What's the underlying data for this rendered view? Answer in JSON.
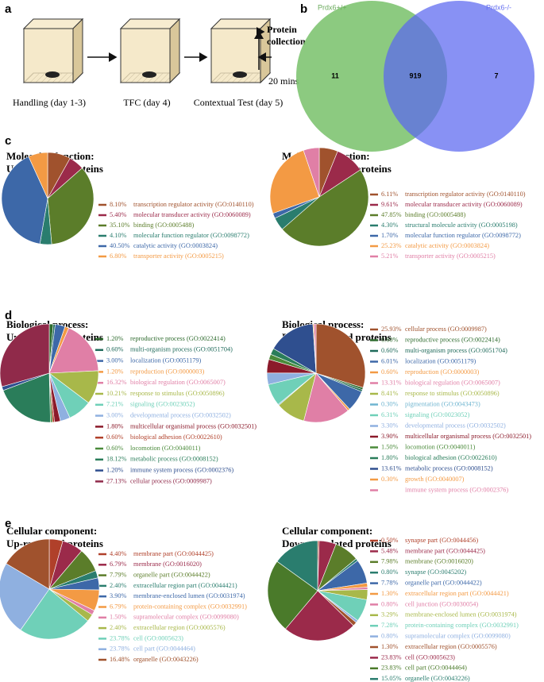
{
  "panel_a": {
    "label": "a",
    "steps": [
      "Handling (day 1-3)",
      "TFC (day 4)",
      "Contextual Test (day 5)"
    ],
    "end_title": [
      "Protein",
      "collection"
    ],
    "end_time": "20 mins"
  },
  "panel_b": {
    "label": "b",
    "sets": [
      "Prdx6+/+",
      "Prdx6-/-"
    ],
    "counts": [
      11,
      919,
      7
    ]
  },
  "panel_labels": [
    "c",
    "d",
    "e"
  ],
  "chart_data": [
    {
      "type": "pie",
      "title": "Molecular function:",
      "subtitle": "Up-regulated proteins",
      "categories": [
        "transcription regulator activity (GO:0140110)",
        "molecular transducer activity (GO:0060089)",
        "binding (GO:0005488)",
        "molecular function regulator (GO:0098772)",
        "catalytic activity (GO:0003824)",
        "transporter activity (GO:0005215)"
      ],
      "values": [
        8.1,
        5.4,
        35.1,
        4.1,
        40.5,
        6.8
      ],
      "value_labels": [
        "8.10%",
        "5.40%",
        "35.10%",
        "4.10%",
        "40.50%",
        "6.80%"
      ],
      "colors": [
        "#a0522d",
        "#9b2a4a",
        "#5b7d2a",
        "#2a7d6e",
        "#3d68a8",
        "#f39a44"
      ]
    },
    {
      "type": "pie",
      "title": "Molecular function:",
      "subtitle": "Down-regulated proteins",
      "categories": [
        "transcription regulator activity (GO:0140110)",
        "molecular transducer activity (GO:0060089)",
        "binding (GO:0005488)",
        "structural molecule activity (GO:0005198)",
        "molecular function regulator (GO:0098772)",
        "catalytic activity (GO:0003824)",
        "transporter activity (GO:0005215)"
      ],
      "values": [
        6.11,
        9.61,
        47.85,
        4.3,
        1.7,
        25.23,
        5.21
      ],
      "value_labels": [
        "6.11%",
        "9.61%",
        "47.85%",
        "4.30%",
        "1.70%",
        "25.23%",
        "5.21%"
      ],
      "colors": [
        "#a0522d",
        "#9b2a4a",
        "#5b7d2a",
        "#2a7d6e",
        "#3d68a8",
        "#f39a44",
        "#e07fa6"
      ]
    },
    {
      "type": "pie",
      "title": "Biological process:",
      "subtitle": "Up-regulated proteins",
      "categories": [
        "reproductive process (GO:0022414)",
        "multi-organism process (GO:0051704)",
        "localization (GO:0051179)",
        "reproduction (GO:0000003)",
        "biological regulation (GO:0065007)",
        "response to stimulus (GO:0050896)",
        "signaling (GO:0023052)",
        "developmental process (GO:0032502)",
        "multicellular organismal process (GO:0032501)",
        "biological adhesion (GO:0022610)",
        "locomotion (GO:0040011)",
        "metabolic process (GO:0008152)",
        "immune system process (GO:0002376)",
        "cellular process (GO:0009987)"
      ],
      "values": [
        1.2,
        0.6,
        3.0,
        1.2,
        16.32,
        10.21,
        7.21,
        3.0,
        1.8,
        0.6,
        0.6,
        18.12,
        1.2,
        27.13
      ],
      "value_labels": [
        "1.20%",
        "0.60%",
        "3.00%",
        "1.20%",
        "16.32%",
        "10.21%",
        "7.21%",
        "3.00%",
        "1.80%",
        "0.60%",
        "0.60%",
        "18.12%",
        "1.20%",
        "27.13%"
      ],
      "colors": [
        "#2e6b2e",
        "#1f6a5a",
        "#3d68a8",
        "#f39a44",
        "#e07fa6",
        "#a8b84a",
        "#6fd0b8",
        "#8fb0e0",
        "#8b1a2a",
        "#b0402a",
        "#4a8a3a",
        "#2a7d5a",
        "#2f4f8f",
        "#902a4a"
      ]
    },
    {
      "type": "pie",
      "title": "Biological process:",
      "subtitle": "Down-regulated proteins",
      "categories": [
        "cellular process (GO:0009987)",
        "reproductive process (GO:0022414)",
        "multi-organism process (GO:0051704)",
        "localization (GO:0051179)",
        "reproduction (GO:0000003)",
        "biological regulation (GO:0065007)",
        "response to stimulus (GO:0050896)",
        "pigmentation (GO:0043473)",
        "signaling (GO:0023052)",
        "developmental process (GO:0032502)",
        "multicellular organismal process (GO:0032501)",
        "locomotion (GO:0040011)",
        "biological adhesion (GO:0022610)",
        "metabolic process (GO:0008152)",
        "growth (GO:0040007)",
        "immune system process (GO:0002376)"
      ],
      "values": [
        25.93,
        0.6,
        0.6,
        6.01,
        0.6,
        13.31,
        8.41,
        0.3,
        6.31,
        3.3,
        3.9,
        1.5,
        1.8,
        13.61,
        0.3,
        0.6
      ],
      "value_labels": [
        "25.93%",
        "0.60%",
        "0.60%",
        "6.01%",
        "0.60%",
        "13.31%",
        "8.41%",
        "0.30%",
        "6.31%",
        "3.30%",
        "3.90%",
        "1.50%",
        "1.80%",
        "13.61%",
        "0.30%",
        null
      ],
      "colors": [
        "#a0522d",
        "#2e6b2e",
        "#1f6a5a",
        "#3d68a8",
        "#f39a44",
        "#e07fa6",
        "#a8b84a",
        "#6fb5d0",
        "#6fd0b8",
        "#8fb0e0",
        "#8b1a2a",
        "#4a8a3a",
        "#2a7d5a",
        "#2f4f8f",
        "#f39a44",
        "#e07fa6"
      ]
    },
    {
      "type": "pie",
      "title": "Cellular component:",
      "subtitle": "Up-regulated proteins",
      "categories": [
        "membrane part (GO:0044425)",
        "membrane (GO:0016020)",
        "organelle part (GO:0044422)",
        "extracellular region part (GO:0044421)",
        "membrane-enclosed lumen (GO:0031974)",
        "protein-containing complex (GO:0032991)",
        "supramolecular complex (GO:0099080)",
        "extracellular region (GO:0005576)",
        "cell (GO:0005623)",
        "cell part (GO:0044464)",
        "organelle (GO:0043226)"
      ],
      "values": [
        4.4,
        6.79,
        7.79,
        2.4,
        3.9,
        6.79,
        1.5,
        2.4,
        23.78,
        23.78,
        16.48
      ],
      "value_labels": [
        "4.40%",
        "6.79%",
        "7.79%",
        "2.40%",
        "3.90%",
        "6.79%",
        "1.50%",
        "2.40%",
        "23.78%",
        "23.78%",
        "16.48%"
      ],
      "colors": [
        "#b0402a",
        "#9b2a4a",
        "#5b7d2a",
        "#2a7d6e",
        "#3d68a8",
        "#f39a44",
        "#e07fa6",
        "#a8b84a",
        "#6fd0b8",
        "#8fb0e0",
        "#a0522d"
      ]
    },
    {
      "type": "pie",
      "title": "Cellular component:",
      "subtitle": "Down-regulated proteins",
      "categories": [
        "synapse part (GO:0044456)",
        "membrane part (GO:0044425)",
        "membrane (GO:0016020)",
        "synapse (GO:0045202)",
        "organelle part (GO:0044422)",
        "extracellular region part (GO:0044421)",
        "cell junction (GO:0030054)",
        "membrane-enclosed lumen (GO:0031974)",
        "protein-containing complex (GO:0032991)",
        "supramolecular complex (GO:0099080)",
        "extracellular region (GO:0005576)",
        "cell (GO:0005623)",
        "cell part (GO:0044464)",
        "organelle (GO:0043226)"
      ],
      "values": [
        0.5,
        5.48,
        7.98,
        0.8,
        7.78,
        1.3,
        0.8,
        3.29,
        7.28,
        0.8,
        1.3,
        23.83,
        23.83,
        15.05
      ],
      "value_labels": [
        "0.50%",
        "5.48%",
        "7.98%",
        "0.80%",
        "7.78%",
        "1.30%",
        "0.80%",
        "3.29%",
        "7.28%",
        "0.80%",
        "1.30%",
        "23.83%",
        "23.83%",
        "15.05%"
      ],
      "colors": [
        "#b0402a",
        "#9b2a4a",
        "#5b7d2a",
        "#2a7d6e",
        "#3d68a8",
        "#f39a44",
        "#e07fa6",
        "#a8b84a",
        "#6fd0b8",
        "#8fb0e0",
        "#a0522d",
        "#9b2a4a",
        "#4a7a2a",
        "#2a7d6e"
      ]
    }
  ]
}
